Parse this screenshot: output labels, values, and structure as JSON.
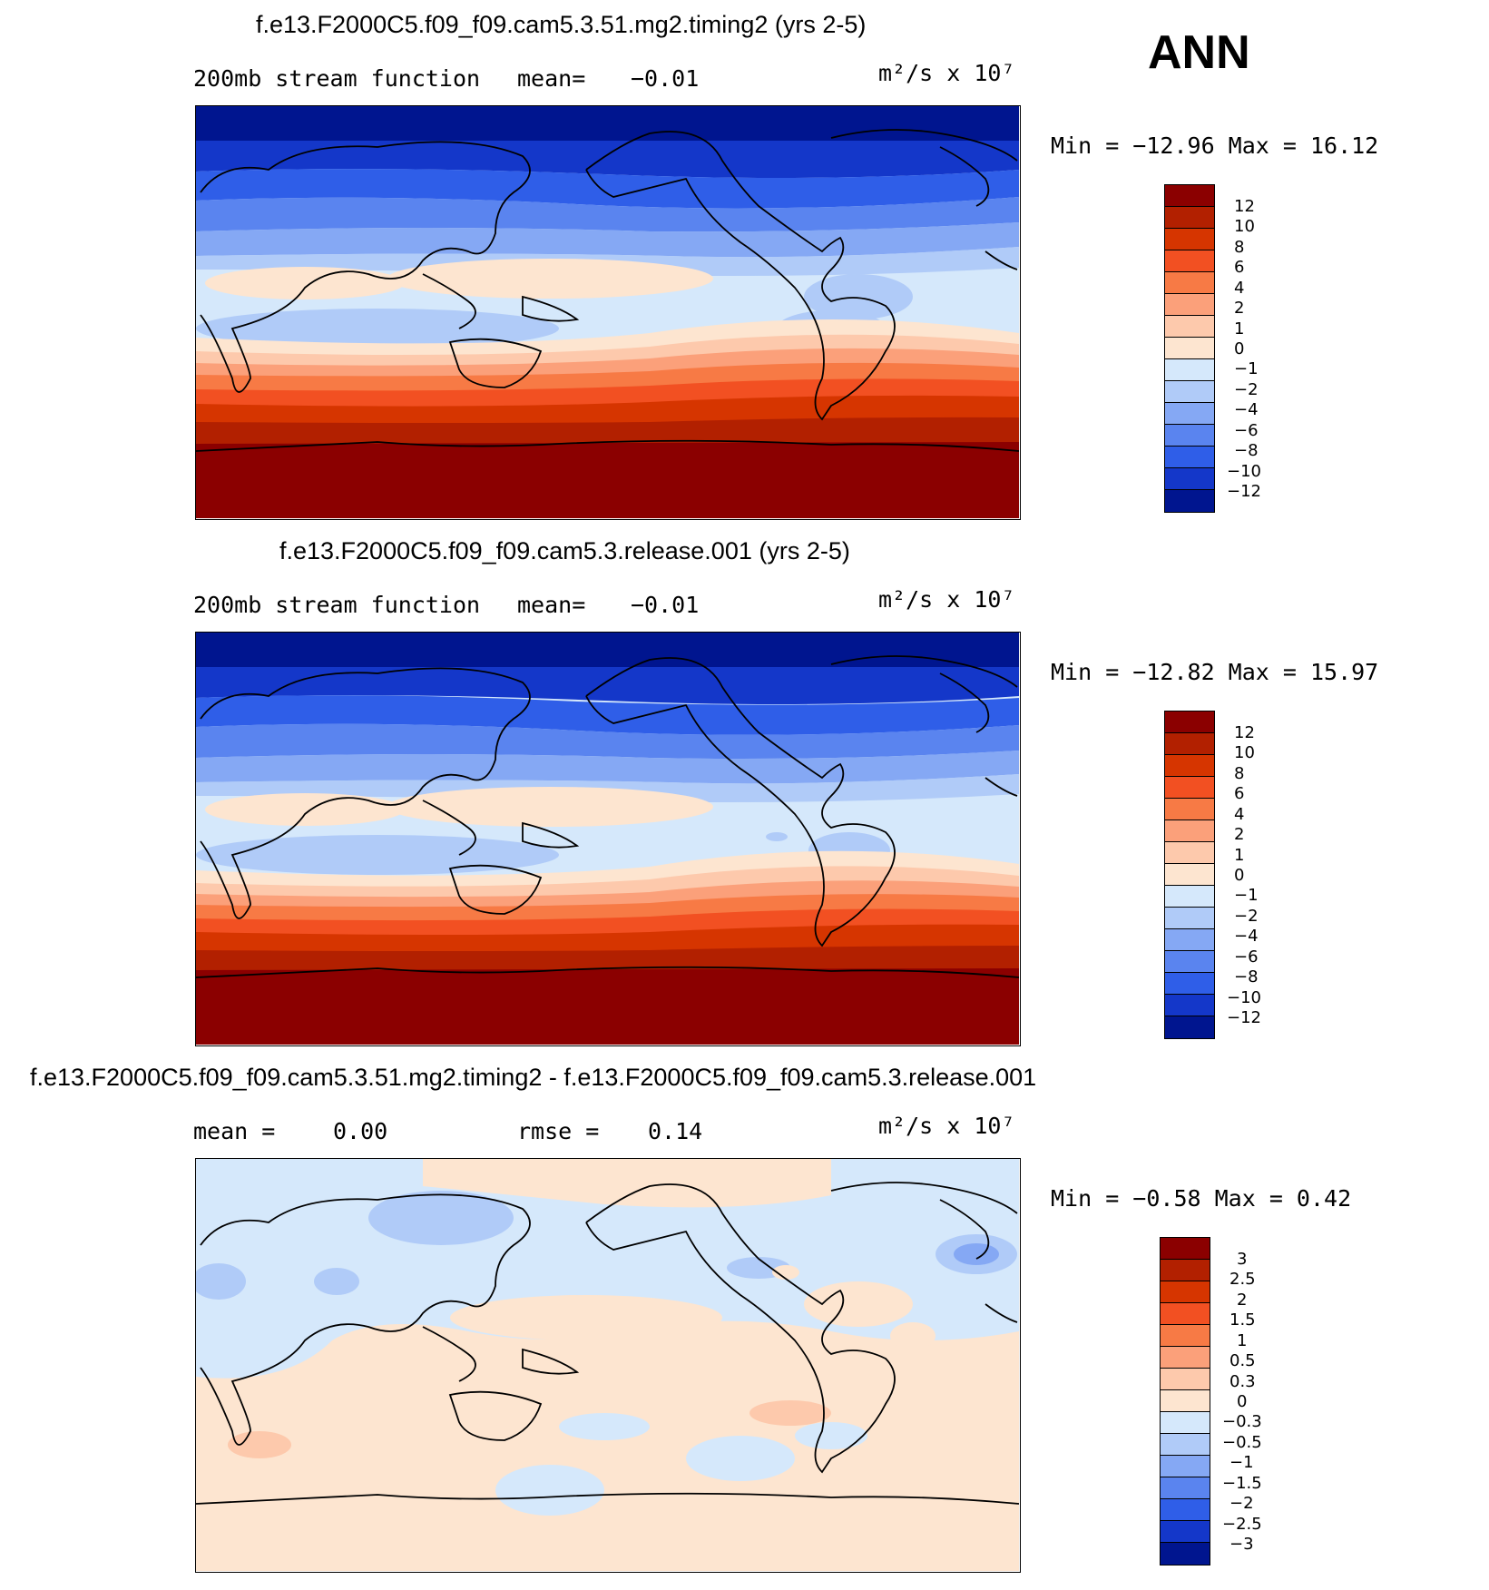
{
  "season": "ANN",
  "panels": [
    {
      "title": "f.e13.F2000C5.f09_f09.cam5.3.51.mg2.timing2 (yrs 2-5)",
      "left_label": "200mb stream function",
      "stat1": "mean=",
      "stat1_value": "−0.01",
      "units": "m²/s x 10⁷",
      "minmax": "Min = −12.96 Max =   16.12",
      "levels": [
        "12",
        "10",
        "8",
        "6",
        "4",
        "2",
        "1",
        "0",
        "−1",
        "−2",
        "−4",
        "−6",
        "−8",
        "−10",
        "−12"
      ]
    },
    {
      "title": "f.e13.F2000C5.f09_f09.cam5.3.release.001 (yrs 2-5)",
      "left_label": "200mb stream function",
      "stat1": "mean=",
      "stat1_value": "−0.01",
      "units": "m²/s x 10⁷",
      "minmax": "Min = −12.82 Max =   15.97",
      "levels": [
        "12",
        "10",
        "8",
        "6",
        "4",
        "2",
        "1",
        "0",
        "−1",
        "−2",
        "−4",
        "−6",
        "−8",
        "−10",
        "−12"
      ]
    },
    {
      "title": "f.e13.F2000C5.f09_f09.cam5.3.51.mg2.timing2 - f.e13.F2000C5.f09_f09.cam5.3.release.001",
      "left_label": "mean =",
      "stat1": "0.00",
      "rmse_label": "rmse =",
      "rmse_value": "0.14",
      "units": "m²/s x 10⁷",
      "minmax": "Min =   −0.58 Max =    0.42",
      "levels": [
        "3",
        "2.5",
        "2",
        "1.5",
        "1",
        "0.5",
        "0.3",
        "0",
        "−0.3",
        "−0.5",
        "−1",
        "−1.5",
        "−2",
        "−2.5",
        "−3"
      ]
    }
  ],
  "colors": {
    "scale": [
      "#8b0000",
      "#b22000",
      "#d63500",
      "#f25022",
      "#f77a45",
      "#fba07a",
      "#fdc9ac",
      "#fde5d0",
      "#d5e8fb",
      "#b0cbf8",
      "#85a8f4",
      "#5a84ef",
      "#2f5ee8",
      "#1437c9",
      "#00158f"
    ]
  }
}
